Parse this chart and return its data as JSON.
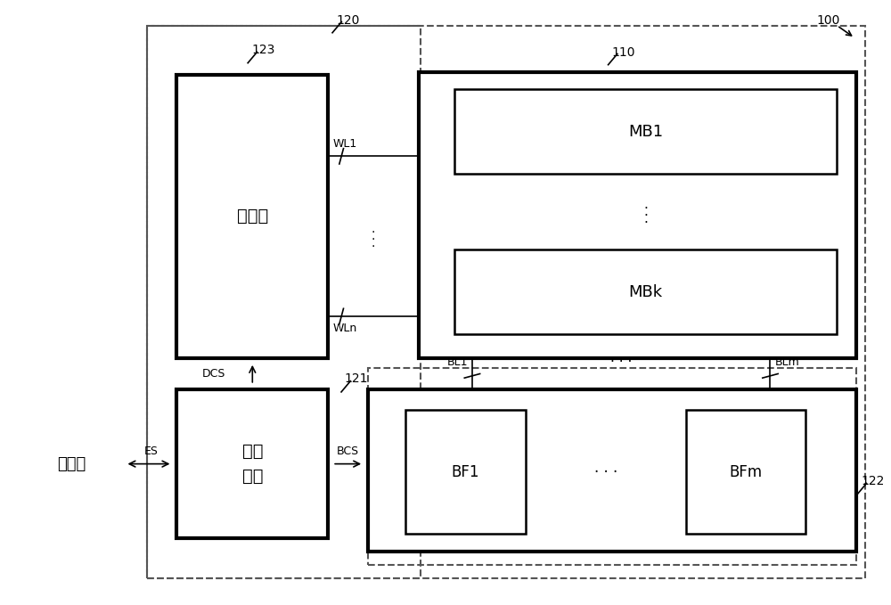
{
  "bg_color": "#ffffff",
  "fig_width": 10.0,
  "fig_height": 6.79,
  "labels": {
    "title_100": "100",
    "title_110": "110",
    "title_120": "120",
    "title_121": "121",
    "title_122": "122",
    "title_123": "123",
    "WL1": "WL1",
    "WLn": "WLn",
    "BL1": "BL1",
    "BLm": "BLm",
    "DCS": "DCS",
    "BCS": "BCS",
    "ES": "ES",
    "MB1": "MB1",
    "MBk": "MBk",
    "BF1": "BF1",
    "BFm": "BFm",
    "decoder": "解码器",
    "control_circuit_1": "控制",
    "control_circuit_2": "电路",
    "controller": "控制器"
  }
}
